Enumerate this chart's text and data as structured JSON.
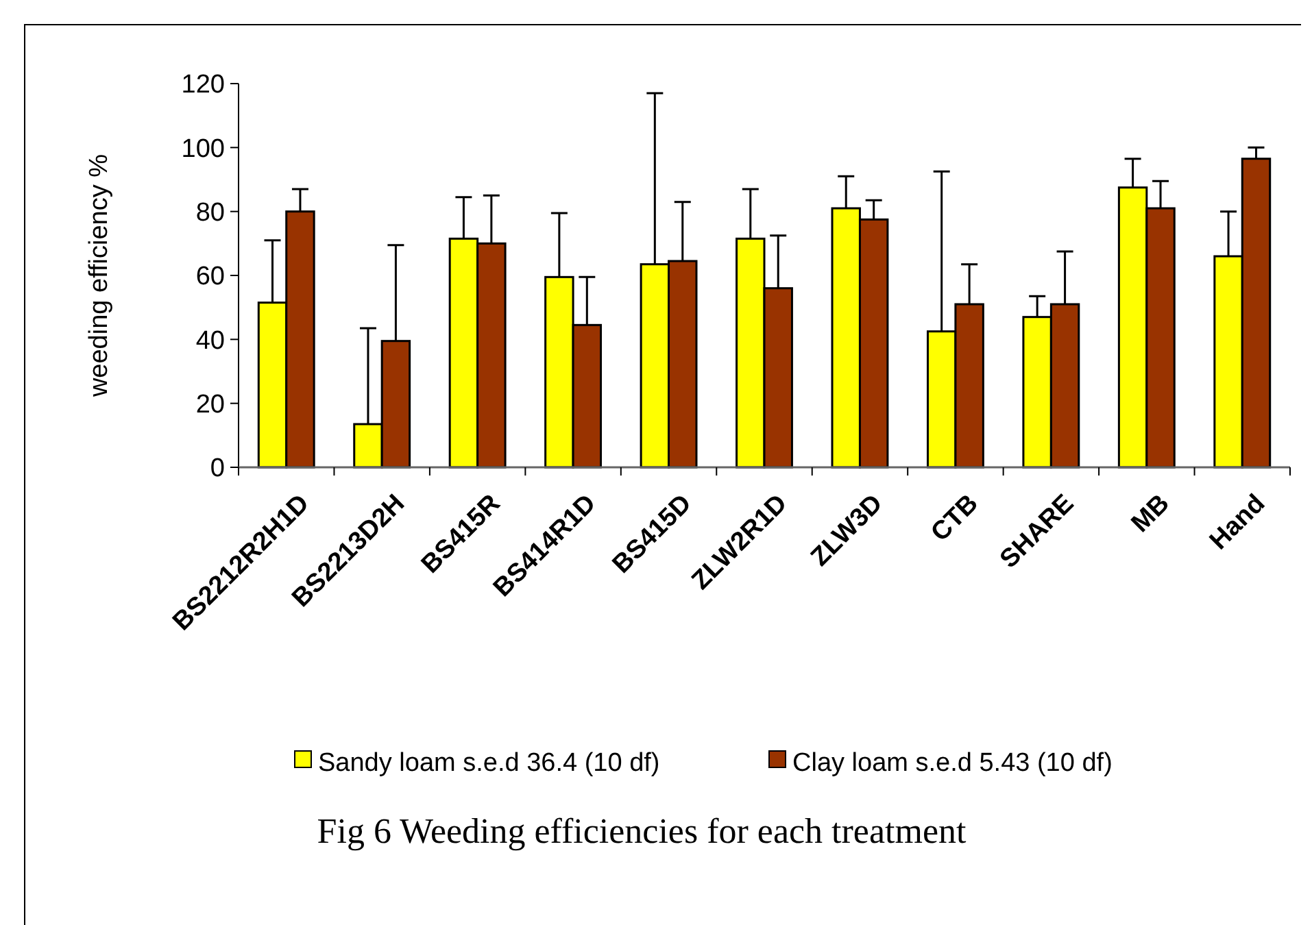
{
  "chart_data": {
    "type": "bar",
    "title": "Fig 6  Weeding efficiencies for each treatment",
    "ylabel": "weeding efficiency %",
    "categories": [
      "BS2212R2H1D",
      "BS2213D2H",
      "BS415R",
      "BS414R1D",
      "BS415D",
      "ZLW2R1D",
      "ZLW3D",
      "CTB",
      "SHARE",
      "MB",
      "Hand"
    ],
    "series": [
      {
        "name": "Sandy loam s.e.d 36.4 (10 df)",
        "color": "#ffff00",
        "values": [
          51.5,
          13.5,
          71.5,
          59.5,
          63.5,
          71.5,
          81,
          42.5,
          47,
          87.5,
          66
        ],
        "errors": [
          [
            51.5,
            71
          ],
          [
            13.5,
            43.5
          ],
          [
            71.5,
            84.5
          ],
          [
            59.5,
            79.5
          ],
          [
            63.5,
            117
          ],
          [
            71.5,
            87
          ],
          [
            81,
            91
          ],
          [
            42.5,
            92.5
          ],
          [
            47,
            53.5
          ],
          [
            87.5,
            96.5
          ],
          [
            66,
            80
          ]
        ]
      },
      {
        "name": "Clay loam s.e.d 5.43 (10 df)",
        "color": "#993300",
        "values": [
          80,
          39.5,
          70,
          44.5,
          64.5,
          56,
          77.5,
          51,
          51,
          81,
          96.5
        ],
        "errors": [
          [
            80,
            87
          ],
          [
            39.5,
            69.5
          ],
          [
            70,
            85
          ],
          [
            44.5,
            59.5
          ],
          [
            64.5,
            83
          ],
          [
            56,
            72.5
          ],
          [
            77.5,
            83.5
          ],
          [
            51,
            63.5
          ],
          [
            51,
            67.5
          ],
          [
            81,
            89.5
          ],
          [
            96.5,
            100
          ]
        ]
      }
    ],
    "ylim": [
      0,
      120
    ],
    "yticks": [
      0,
      20,
      40,
      60,
      80,
      100,
      120
    ],
    "grid": false,
    "legend": "bottom"
  }
}
